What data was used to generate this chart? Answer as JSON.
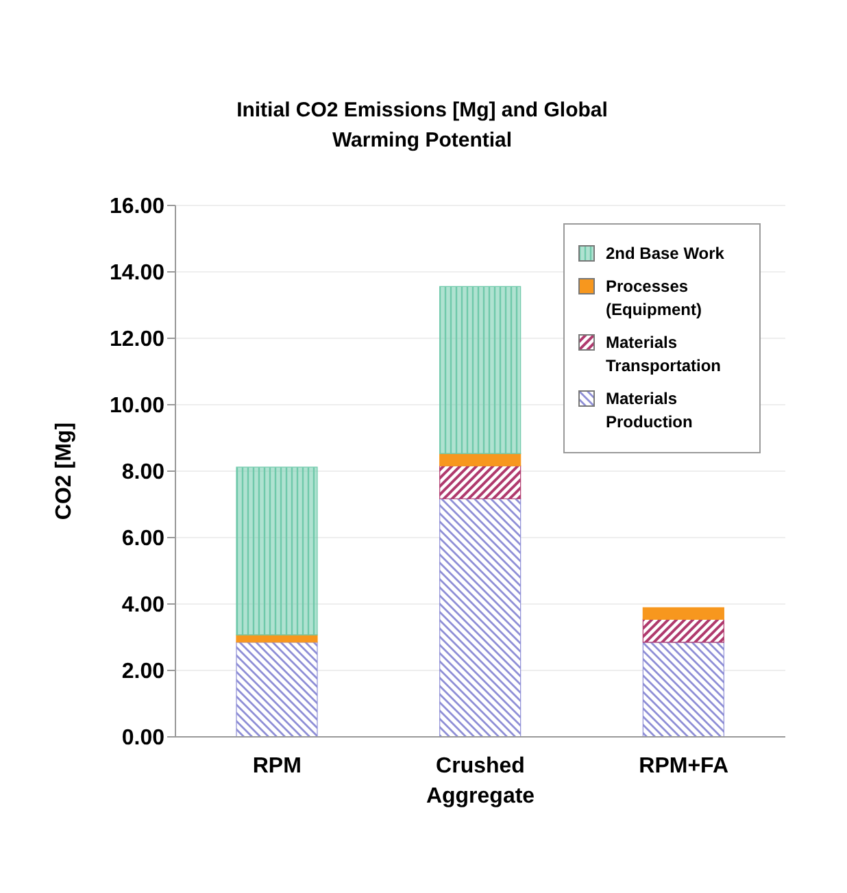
{
  "chart_data": {
    "type": "bar",
    "title": "Initial CO2 Emissions [Mg] and Global Warming Potential",
    "ylabel": "CO2 [Mg]",
    "categories": [
      "RPM",
      "Crushed Aggregate",
      "RPM+FA"
    ],
    "stacked": true,
    "series": [
      {
        "name": "Materials Production",
        "color": "#8e8ed6",
        "values": [
          2.85,
          7.17,
          2.85
        ]
      },
      {
        "name": "Materials Transportation",
        "color": "#b03a6e",
        "values": [
          0,
          0.99,
          0.69
        ]
      },
      {
        "name": "Processes (Equipment)",
        "color": "#f7971e",
        "values": [
          0.22,
          0.37,
          0.35
        ]
      },
      {
        "name": "2nd Base Work",
        "color": "#6fc9aa",
        "values": [
          5.05,
          5.03,
          0
        ]
      }
    ],
    "ylim": [
      0,
      16
    ],
    "yticks": [
      {
        "value": 0,
        "label": "0.00"
      },
      {
        "value": 2,
        "label": "2.00"
      },
      {
        "value": 4,
        "label": "4.00"
      },
      {
        "value": 6,
        "label": "6.00"
      },
      {
        "value": 8,
        "label": "8.00"
      },
      {
        "value": 10,
        "label": "10.00"
      },
      {
        "value": 12,
        "label": "12.00"
      },
      {
        "value": 14,
        "label": "14.00"
      },
      {
        "value": 16,
        "label": "16.00"
      }
    ],
    "grid": "y",
    "legend": "top right"
  }
}
